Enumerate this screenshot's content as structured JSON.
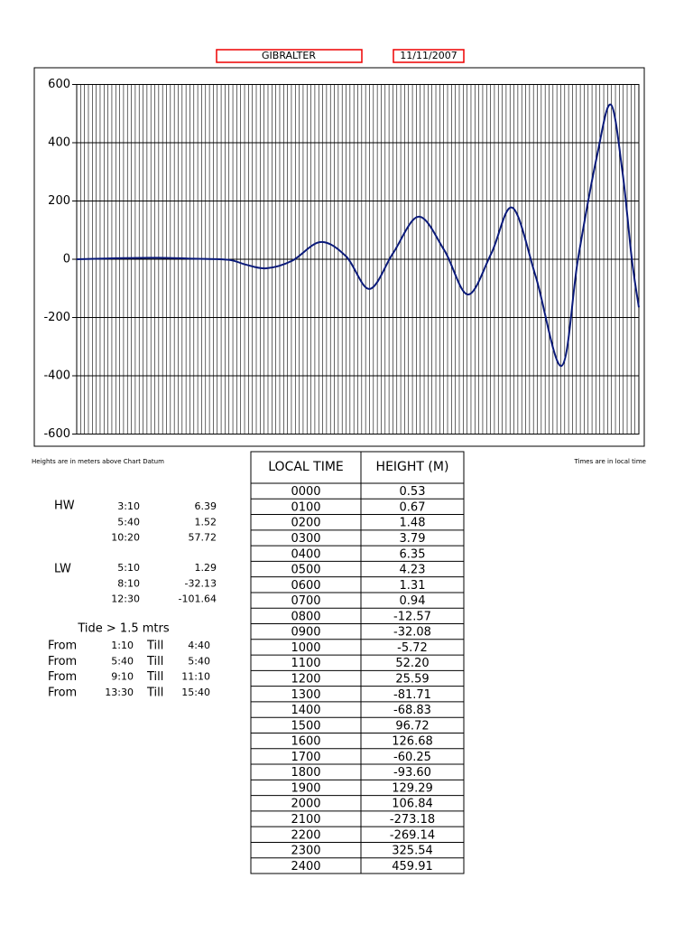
{
  "header": {
    "place": "GIBRALTER",
    "date": "11/11/2007"
  },
  "chart_data": {
    "type": "line",
    "x": [
      0,
      2,
      3.5,
      5,
      6.5,
      7.2,
      8.1,
      9.2,
      10.4,
      11.5,
      12.5,
      13.5,
      14.6,
      15.7,
      16.7,
      17.7,
      18.6,
      19.6,
      20.7,
      21.4,
      22.2,
      22.8,
      23.3,
      23.7,
      24
    ],
    "series": [
      {
        "color": "#0a1a7a",
        "values": [
          0,
          4,
          5,
          2,
          -2,
          -18,
          -31,
          -5,
          59,
          10,
          -102,
          20,
          146,
          30,
          -121,
          20,
          177,
          -60,
          -366,
          0,
          350,
          531,
          300,
          0,
          -165
        ]
      }
    ],
    "xlim": [
      0,
      24
    ],
    "ylim": [
      -600,
      600
    ],
    "yticks": [
      -600,
      -400,
      -200,
      0,
      200,
      400,
      600
    ],
    "grid": true
  },
  "notes": {
    "left": "Heights are in meters above Chart Datum",
    "right": "Times are in local time"
  },
  "high_water": {
    "label": "HW",
    "rows": [
      [
        "3:10",
        "6.39"
      ],
      [
        "5:40",
        "1.52"
      ],
      [
        "10:20",
        "57.72"
      ]
    ]
  },
  "low_water": {
    "label": "LW",
    "rows": [
      [
        "5:10",
        "1.29"
      ],
      [
        "8:10",
        "-32.13"
      ],
      [
        "12:30",
        "-101.64"
      ]
    ]
  },
  "tide": {
    "title": "Tide > 1.5 mtrs",
    "rows": [
      [
        "From",
        "1:10",
        "Till",
        "4:40"
      ],
      [
        "From",
        "5:40",
        "Till",
        "5:40"
      ],
      [
        "From",
        "9:10",
        "Till",
        "11:10"
      ],
      [
        "From",
        "13:30",
        "Till",
        "15:40"
      ]
    ]
  },
  "table": {
    "header": [
      "LOCAL TIME",
      "HEIGHT (M)"
    ],
    "rows": [
      [
        "0000",
        "0.53"
      ],
      [
        "0100",
        "0.67"
      ],
      [
        "0200",
        "1.48"
      ],
      [
        "0300",
        "3.79"
      ],
      [
        "0400",
        "6.35"
      ],
      [
        "0500",
        "4.23"
      ],
      [
        "0600",
        "1.31"
      ],
      [
        "0700",
        "0.94"
      ],
      [
        "0800",
        "-12.57"
      ],
      [
        "0900",
        "-32.08"
      ],
      [
        "1000",
        "-5.72"
      ],
      [
        "1100",
        "52.20"
      ],
      [
        "1200",
        "25.59"
      ],
      [
        "1300",
        "-81.71"
      ],
      [
        "1400",
        "-68.83"
      ],
      [
        "1500",
        "96.72"
      ],
      [
        "1600",
        "126.68"
      ],
      [
        "1700",
        "-60.25"
      ],
      [
        "1800",
        "-93.60"
      ],
      [
        "1900",
        "129.29"
      ],
      [
        "2000",
        "106.84"
      ],
      [
        "2100",
        "-273.18"
      ],
      [
        "2200",
        "-269.14"
      ],
      [
        "2300",
        "325.54"
      ],
      [
        "2400",
        "459.91"
      ]
    ]
  }
}
